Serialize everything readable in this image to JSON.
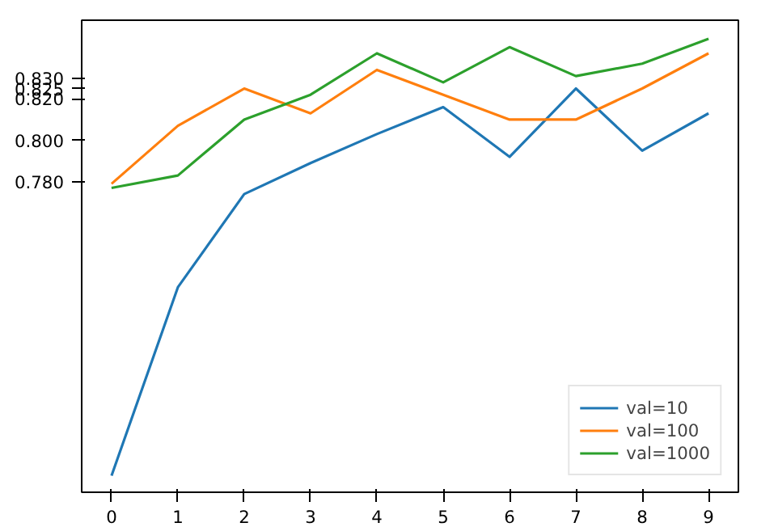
{
  "chart_data": {
    "type": "line",
    "x": [
      0,
      1,
      2,
      3,
      4,
      5,
      6,
      7,
      8,
      9
    ],
    "series": [
      {
        "name": "val=10",
        "color": "#1f77b4",
        "values": [
          0.638,
          0.729,
          0.774,
          0.789,
          0.803,
          0.816,
          0.792,
          0.825,
          0.795,
          0.813
        ]
      },
      {
        "name": "val=100",
        "color": "#ff7f0e",
        "values": [
          0.779,
          0.807,
          0.825,
          0.813,
          0.834,
          0.822,
          0.81,
          0.81,
          0.825,
          0.842
        ]
      },
      {
        "name": "val=1000",
        "color": "#2ca02c",
        "values": [
          0.777,
          0.783,
          0.81,
          0.822,
          0.842,
          0.828,
          0.845,
          0.831,
          0.837,
          0.849
        ]
      }
    ],
    "xlim": [
      -0.45,
      9.45
    ],
    "ylim": [
      0.63,
      0.858
    ],
    "xticks": [
      0,
      1,
      2,
      3,
      4,
      5,
      6,
      7,
      8,
      9
    ],
    "yticks": [
      {
        "value": 0.78,
        "label": "0.780"
      },
      {
        "value": 0.8,
        "label": "0.800"
      },
      {
        "value": 0.82,
        "label": "0.820"
      },
      {
        "value": 0.825,
        "label": "0.825"
      },
      {
        "value": 0.83,
        "label": "0.830"
      }
    ],
    "legend": "bottom right",
    "grid": false
  }
}
